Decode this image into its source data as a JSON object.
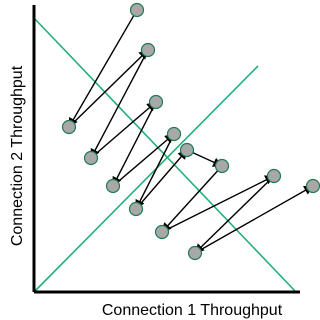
{
  "axes": {
    "x_label": "Connection  1 Throughput",
    "y_label": "Connection 2 Throughput"
  },
  "colors": {
    "axis": "#000000",
    "reference_lines": "#22b07a",
    "point_fill": "#a8a8a8",
    "point_stroke": "#1f7a55",
    "arrow": "#000000"
  }
}
